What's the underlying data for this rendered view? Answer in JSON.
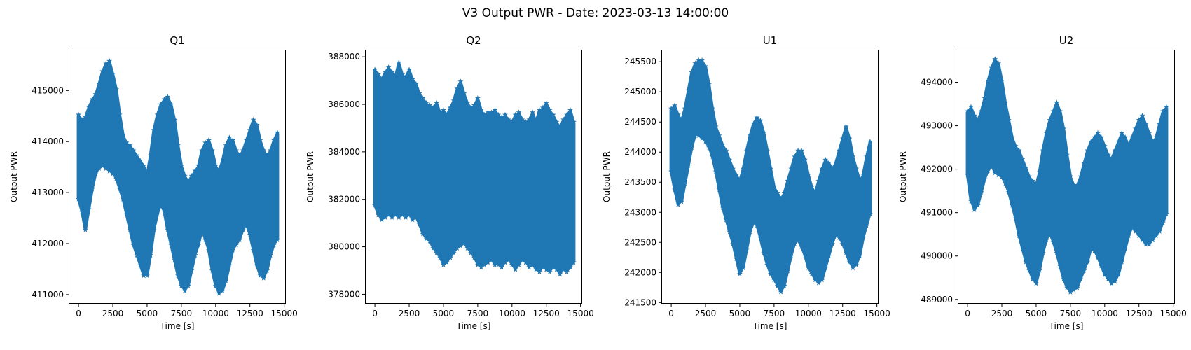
{
  "figure": {
    "title": "V3 Output PWR - Date: 2023-03-13 14:00:00"
  },
  "chart_data": [
    {
      "type": "scatter",
      "title": "Q1",
      "xlabel": "Time [s]",
      "ylabel": "Output PWR",
      "marker": "star",
      "color": "#1f77b4",
      "xlim": [
        -720,
        15120
      ],
      "ylim": [
        410820,
        415800
      ],
      "xticks": [
        0,
        2500,
        5000,
        7500,
        10000,
        12500,
        15000
      ],
      "xtick_labels": [
        "0",
        "2500",
        "5000",
        "7500",
        "10000",
        "12500",
        "15000"
      ],
      "yticks": [
        411000,
        412000,
        413000,
        414000,
        415000
      ],
      "ytick_labels": [
        "411000",
        "412000",
        "413000",
        "414000",
        "415000"
      ],
      "grid": false,
      "x": [
        0,
        250,
        500,
        750,
        1000,
        1250,
        1500,
        1750,
        2000,
        2250,
        2500,
        2750,
        3000,
        3250,
        3500,
        3750,
        4000,
        4250,
        4500,
        4750,
        5000,
        5250,
        5500,
        5750,
        6000,
        6250,
        6500,
        6750,
        7000,
        7250,
        7500,
        7750,
        8000,
        8250,
        8500,
        8750,
        9000,
        9250,
        9500,
        9750,
        10000,
        10250,
        10500,
        10750,
        11000,
        11250,
        11500,
        11750,
        12000,
        12250,
        12500,
        12750,
        13000,
        13250,
        13500,
        13750,
        14000,
        14250,
        14500
      ],
      "upper": [
        414500,
        414400,
        414450,
        414650,
        414800,
        414900,
        415100,
        415350,
        415500,
        415550,
        415300,
        415000,
        414500,
        414100,
        413950,
        413900,
        413800,
        413700,
        413600,
        413500,
        413300,
        413700,
        414200,
        414500,
        414700,
        414800,
        414850,
        414700,
        414400,
        413900,
        413500,
        413300,
        413200,
        413300,
        413400,
        413500,
        413800,
        413950,
        414000,
        413800,
        413500,
        413400,
        413600,
        413900,
        414050,
        414000,
        413800,
        413700,
        413800,
        414000,
        414200,
        414400,
        414300,
        414000,
        413800,
        413700,
        413800,
        414000,
        414150
      ],
      "lower": [
        412900,
        412650,
        412300,
        412700,
        413100,
        413400,
        413500,
        413550,
        413500,
        413450,
        413400,
        413300,
        413100,
        412900,
        412600,
        412300,
        412000,
        411800,
        411600,
        411400,
        411400,
        411800,
        412300,
        412600,
        412800,
        412650,
        412300,
        412000,
        411700,
        411400,
        411200,
        411100,
        411200,
        411500,
        411800,
        412000,
        412300,
        412100,
        411900,
        411500,
        411200,
        411050,
        411100,
        411300,
        411600,
        411900,
        412000,
        412100,
        412300,
        412400,
        412200,
        411900,
        411600,
        411400,
        411350,
        411500,
        411800,
        412000,
        412100
      ]
    },
    {
      "type": "scatter",
      "title": "Q2",
      "xlabel": "Time [s]",
      "ylabel": "Output PWR",
      "marker": "star",
      "color": "#1f77b4",
      "xlim": [
        -720,
        15120
      ],
      "ylim": [
        377600,
        388300
      ],
      "xticks": [
        0,
        2500,
        5000,
        7500,
        10000,
        12500,
        15000
      ],
      "xtick_labels": [
        "0",
        "2500",
        "5000",
        "7500",
        "10000",
        "12500",
        "15000"
      ],
      "yticks": [
        378000,
        380000,
        382000,
        384000,
        386000,
        388000
      ],
      "ytick_labels": [
        "378000",
        "380000",
        "382000",
        "384000",
        "386000",
        "388000"
      ],
      "grid": false,
      "x": [
        0,
        250,
        500,
        750,
        1000,
        1250,
        1500,
        1750,
        2000,
        2250,
        2500,
        2750,
        3000,
        3250,
        3500,
        3750,
        4000,
        4250,
        4500,
        4750,
        5000,
        5250,
        5500,
        5750,
        6000,
        6250,
        6500,
        6750,
        7000,
        7250,
        7500,
        7750,
        8000,
        8250,
        8500,
        8750,
        9000,
        9250,
        9500,
        9750,
        10000,
        10250,
        10500,
        10750,
        11000,
        11250,
        11500,
        11750,
        12000,
        12250,
        12500,
        12750,
        13000,
        13250,
        13500,
        13750,
        14000,
        14250,
        14500
      ],
      "upper": [
        387400,
        387200,
        387000,
        387300,
        387500,
        387300,
        387100,
        387700,
        387200,
        387100,
        387400,
        387000,
        386800,
        386400,
        386200,
        386000,
        385900,
        385800,
        386000,
        385600,
        385700,
        385500,
        385800,
        386100,
        386600,
        386900,
        386400,
        386000,
        385800,
        385900,
        386200,
        385700,
        385500,
        385600,
        385600,
        385700,
        385500,
        385400,
        385500,
        385300,
        385200,
        385500,
        385600,
        385300,
        385200,
        385300,
        385600,
        385200,
        385700,
        385800,
        386000,
        385700,
        385500,
        385200,
        385000,
        385300,
        385500,
        385700,
        385200
      ],
      "lower": [
        381800,
        381400,
        381200,
        381300,
        381400,
        381300,
        381400,
        381300,
        381400,
        381300,
        381400,
        381200,
        381300,
        381000,
        380600,
        380400,
        380300,
        380000,
        379800,
        379600,
        379300,
        379400,
        379600,
        379800,
        380000,
        380100,
        380200,
        380000,
        379800,
        379600,
        379300,
        379200,
        379300,
        379400,
        379500,
        379300,
        379300,
        379200,
        379400,
        379500,
        379300,
        379100,
        379300,
        379500,
        379400,
        379200,
        379300,
        379100,
        379000,
        379200,
        379100,
        379000,
        379200,
        379100,
        378900,
        379100,
        379000,
        379200,
        379400
      ]
    },
    {
      "type": "scatter",
      "title": "U1",
      "xlabel": "Time [s]",
      "ylabel": "Output PWR",
      "marker": "star",
      "color": "#1f77b4",
      "xlim": [
        -720,
        15120
      ],
      "ylim": [
        241480,
        245700
      ],
      "xticks": [
        0,
        2500,
        5000,
        7500,
        10000,
        12500,
        15000
      ],
      "xtick_labels": [
        "0",
        "2500",
        "5000",
        "7500",
        "10000",
        "12500",
        "15000"
      ],
      "yticks": [
        241500,
        242000,
        242500,
        243000,
        243500,
        244000,
        244500,
        245000,
        245500
      ],
      "ytick_labels": [
        "241500",
        "242000",
        "242500",
        "243000",
        "243500",
        "244000",
        "244500",
        "245000",
        "245500"
      ],
      "grid": false,
      "x": [
        0,
        250,
        500,
        750,
        1000,
        1250,
        1500,
        1750,
        2000,
        2250,
        2500,
        2750,
        3000,
        3250,
        3500,
        3750,
        4000,
        4250,
        4500,
        4750,
        5000,
        5250,
        5500,
        5750,
        6000,
        6250,
        6500,
        6750,
        7000,
        7250,
        7500,
        7750,
        8000,
        8250,
        8500,
        8750,
        9000,
        9250,
        9500,
        9750,
        10000,
        10250,
        10500,
        10750,
        11000,
        11250,
        11500,
        11750,
        12000,
        12250,
        12500,
        12750,
        13000,
        13250,
        13500,
        13750,
        14000,
        14250,
        14500
      ],
      "upper": [
        244700,
        244750,
        244600,
        244500,
        244700,
        245000,
        245300,
        245450,
        245500,
        245500,
        245400,
        245100,
        244700,
        244400,
        244250,
        244100,
        244000,
        243850,
        243700,
        243600,
        243500,
        243700,
        244000,
        244250,
        244450,
        244550,
        244500,
        244300,
        244000,
        243700,
        243400,
        243300,
        243200,
        243300,
        243500,
        243700,
        243900,
        244000,
        244000,
        243850,
        243600,
        243400,
        243300,
        243500,
        243700,
        243850,
        243800,
        243700,
        243800,
        244000,
        244200,
        244400,
        244200,
        243900,
        243700,
        243500,
        243600,
        243900,
        244150
      ],
      "lower": [
        243700,
        243400,
        243150,
        243200,
        243500,
        243800,
        244100,
        244300,
        244300,
        244250,
        244200,
        244100,
        243950,
        243700,
        243400,
        243100,
        242900,
        242700,
        242500,
        242250,
        242000,
        242100,
        242400,
        242700,
        242850,
        242800,
        242600,
        242350,
        242150,
        242000,
        241900,
        241800,
        241700,
        241800,
        242050,
        242300,
        242500,
        242550,
        242450,
        242300,
        242100,
        242000,
        241900,
        241850,
        241900,
        242100,
        242300,
        242500,
        242650,
        242600,
        242500,
        242350,
        242200,
        242100,
        242150,
        242300,
        242600,
        242800,
        243000
      ]
    },
    {
      "type": "scatter",
      "title": "U2",
      "xlabel": "Time [s]",
      "ylabel": "Output PWR",
      "marker": "star",
      "color": "#1f77b4",
      "xlim": [
        -720,
        15120
      ],
      "ylim": [
        488900,
        494750
      ],
      "xticks": [
        0,
        2500,
        5000,
        7500,
        10000,
        12500,
        15000
      ],
      "xtick_labels": [
        "0",
        "2500",
        "5000",
        "7500",
        "10000",
        "12500",
        "15000"
      ],
      "yticks": [
        489000,
        490000,
        491000,
        492000,
        493000,
        494000
      ],
      "ytick_labels": [
        "489000",
        "490000",
        "491000",
        "492000",
        "493000",
        "494000"
      ],
      "grid": false,
      "x": [
        0,
        250,
        500,
        750,
        1000,
        1250,
        1500,
        1750,
        2000,
        2250,
        2500,
        2750,
        3000,
        3250,
        3500,
        3750,
        4000,
        4250,
        4500,
        4750,
        5000,
        5250,
        5500,
        5750,
        6000,
        6250,
        6500,
        6750,
        7000,
        7250,
        7500,
        7750,
        8000,
        8250,
        8500,
        8750,
        9000,
        9250,
        9500,
        9750,
        10000,
        10250,
        10500,
        10750,
        11000,
        11250,
        11500,
        11750,
        12000,
        12250,
        12500,
        12750,
        13000,
        13250,
        13500,
        13750,
        14000,
        14250,
        14500
      ],
      "upper": [
        493300,
        493400,
        493200,
        493100,
        493300,
        493600,
        494000,
        494300,
        494500,
        494400,
        494000,
        493500,
        493100,
        492700,
        492500,
        492400,
        492200,
        492000,
        491800,
        491700,
        491600,
        491900,
        492400,
        492800,
        493100,
        493300,
        493500,
        493300,
        492900,
        492300,
        491800,
        491600,
        491600,
        491800,
        492100,
        492400,
        492600,
        492700,
        492800,
        492700,
        492500,
        492300,
        492200,
        492400,
        492600,
        492800,
        492700,
        492500,
        492700,
        492900,
        493100,
        493200,
        493000,
        492800,
        492600,
        492700,
        493000,
        493300,
        493400
      ],
      "lower": [
        491900,
        491300,
        491100,
        491200,
        491500,
        491800,
        492000,
        492100,
        491950,
        491900,
        491850,
        491700,
        491500,
        491200,
        490900,
        490500,
        490200,
        489900,
        489700,
        489500,
        489400,
        489700,
        490100,
        490400,
        490550,
        490350,
        490100,
        489800,
        489500,
        489300,
        489200,
        489250,
        489300,
        489500,
        489700,
        489900,
        490200,
        490150,
        490000,
        489800,
        489600,
        489500,
        489400,
        489450,
        489600,
        489900,
        490200,
        490500,
        490700,
        490600,
        490500,
        490400,
        490300,
        490300,
        490400,
        490500,
        490600,
        490800,
        491000
      ]
    }
  ]
}
